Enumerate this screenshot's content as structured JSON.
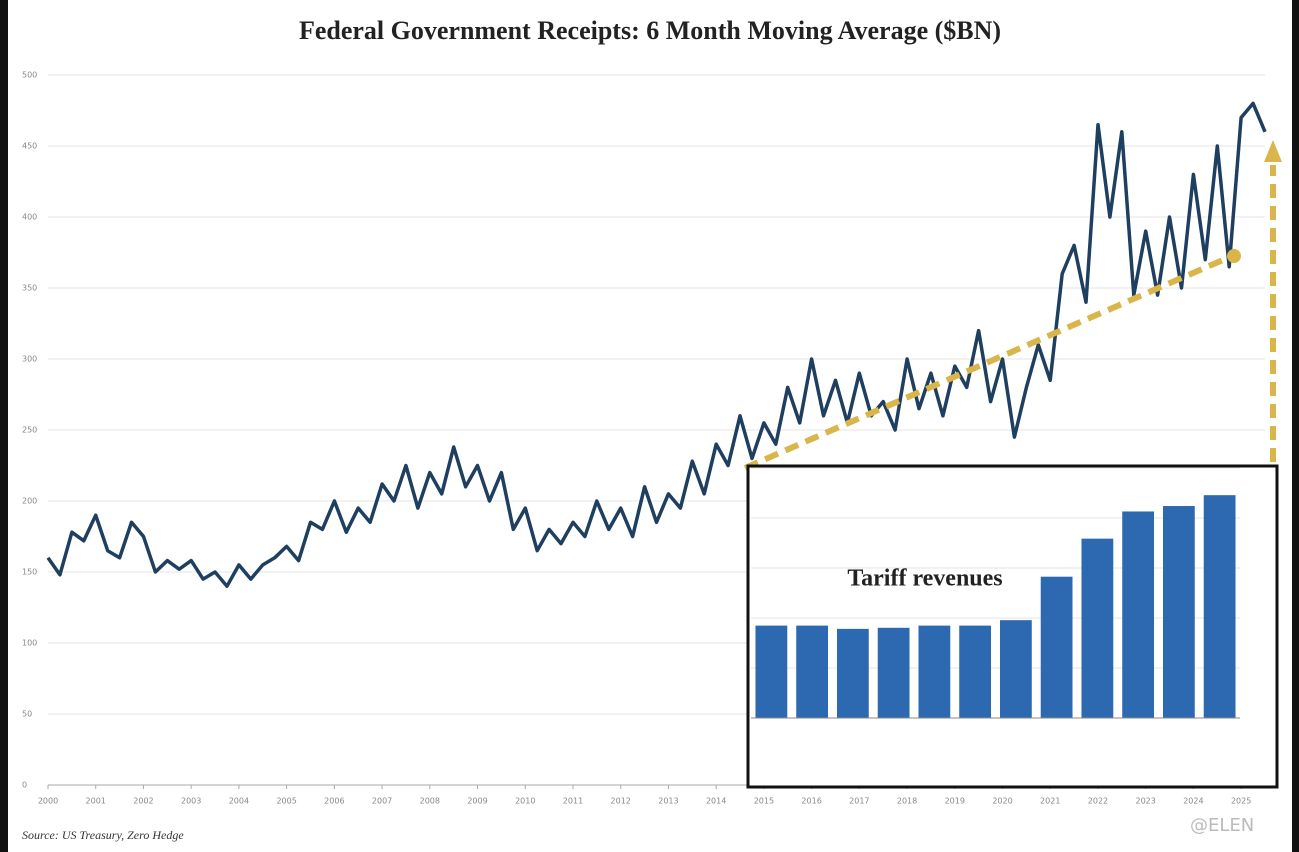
{
  "chart_data": [
    {
      "type": "line",
      "title": "Federal Government Receipts: 6 Month Moving Average ($BN)",
      "source": "Source: US Treasury, Zero Hedge",
      "watermark": "@ELEN",
      "x": [
        2000,
        2000.25,
        2000.5,
        2000.75,
        2001,
        2001.25,
        2001.5,
        2001.75,
        2002,
        2002.25,
        2002.5,
        2002.75,
        2003,
        2003.25,
        2003.5,
        2003.75,
        2004,
        2004.25,
        2004.5,
        2004.75,
        2005,
        2005.25,
        2005.5,
        2005.75,
        2006,
        2006.25,
        2006.5,
        2006.75,
        2007,
        2007.25,
        2007.5,
        2007.75,
        2008,
        2008.25,
        2008.5,
        2008.75,
        2009,
        2009.25,
        2009.5,
        2009.75,
        2010,
        2010.25,
        2010.5,
        2010.75,
        2011,
        2011.25,
        2011.5,
        2011.75,
        2012,
        2012.25,
        2012.5,
        2012.75,
        2013,
        2013.25,
        2013.5,
        2013.75,
        2014,
        2014.25,
        2014.5,
        2014.75,
        2015,
        2015.25,
        2015.5,
        2015.75,
        2016,
        2016.25,
        2016.5,
        2016.75,
        2017,
        2017.25,
        2017.5,
        2017.75,
        2018,
        2018.25,
        2018.5,
        2018.75,
        2019,
        2019.25,
        2019.5,
        2019.75,
        2020,
        2020.25,
        2020.5,
        2020.75,
        2021,
        2021.25,
        2021.5,
        2021.75,
        2022,
        2022.25,
        2022.5,
        2022.75,
        2023,
        2023.25,
        2023.5,
        2023.75,
        2024,
        2024.25,
        2024.5,
        2024.75,
        2025,
        2025.25,
        2025.5
      ],
      "series": [
        {
          "name": "Receipts",
          "color": "#1f3f60",
          "values": [
            160,
            148,
            178,
            172,
            190,
            165,
            160,
            185,
            175,
            150,
            158,
            152,
            158,
            145,
            150,
            140,
            155,
            145,
            155,
            160,
            168,
            158,
            185,
            180,
            200,
            178,
            195,
            185,
            212,
            200,
            225,
            195,
            220,
            205,
            238,
            210,
            225,
            200,
            220,
            180,
            195,
            165,
            180,
            170,
            185,
            175,
            200,
            180,
            195,
            175,
            210,
            185,
            205,
            195,
            228,
            205,
            240,
            225,
            260,
            230,
            255,
            240,
            280,
            255,
            300,
            260,
            285,
            255,
            290,
            260,
            270,
            250,
            300,
            265,
            290,
            260,
            295,
            280,
            320,
            270,
            300,
            245,
            280,
            310,
            285,
            360,
            380,
            340,
            465,
            400,
            460,
            345,
            390,
            345,
            400,
            350,
            430,
            370,
            450,
            365,
            470,
            480,
            460
          ]
        }
      ],
      "xlim": [
        2000,
        2025.5
      ],
      "ylim": [
        0,
        500
      ],
      "xticks": [
        2000,
        2001,
        2002,
        2003,
        2004,
        2005,
        2006,
        2007,
        2008,
        2009,
        2010,
        2011,
        2012,
        2013,
        2014,
        2015,
        2016,
        2017,
        2018,
        2019,
        2020,
        2021,
        2022,
        2023,
        2024,
        2025
      ],
      "yticks": [
        0,
        50,
        100,
        150,
        200,
        250,
        300,
        350,
        400,
        450,
        500
      ],
      "grid": true
    },
    {
      "type": "bar",
      "title": "Tariff revenues",
      "categories": [
        null,
        null,
        null,
        null,
        null,
        null,
        null,
        null,
        null,
        null,
        null,
        null
      ],
      "values": [
        85,
        85,
        82,
        83,
        85,
        85,
        90,
        130,
        165,
        190,
        195,
        205
      ],
      "color": "#2c69b0",
      "ylim": [
        0,
        230
      ]
    }
  ]
}
